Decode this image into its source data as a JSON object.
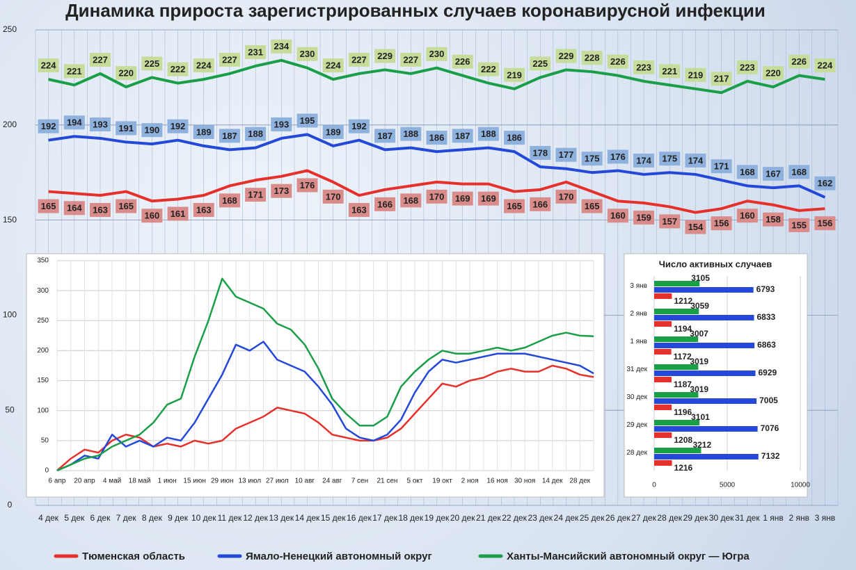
{
  "title": "Динамика прироста зарегистрированных случаев коронавирусной инфекции",
  "chart_data": [
    {
      "type": "line",
      "categories": [
        "4 дек",
        "5 дек",
        "6 дек",
        "7 дек",
        "8 дек",
        "9 дек",
        "10 дек",
        "11 дек",
        "12 дек",
        "13 дек",
        "14 дек",
        "15 дек",
        "16 дек",
        "17 дек",
        "18 дек",
        "19 дек",
        "20 дек",
        "21 дек",
        "22 дек",
        "23 дек",
        "24 дек",
        "25 дек",
        "26 дек",
        "27 дек",
        "28 дек",
        "29 дек",
        "30 дек",
        "31 дек",
        "1 янв",
        "2 янв",
        "3 янв"
      ],
      "ylim": [
        0,
        250
      ],
      "yticks": [
        0,
        50,
        100,
        150,
        200,
        250
      ],
      "grid": true,
      "legend": "bottom",
      "series": [
        {
          "name": "Тюменская область",
          "color": "#e5302b",
          "values": [
            165,
            164,
            163,
            165,
            160,
            161,
            163,
            168,
            171,
            173,
            176,
            170,
            163,
            166,
            168,
            170,
            169,
            169,
            165,
            166,
            170,
            165,
            160,
            159,
            157,
            154,
            156,
            160,
            158,
            155,
            156
          ]
        },
        {
          "name": "Ямало-Ненецкий автономный округ",
          "color": "#2448d8",
          "values": [
            192,
            194,
            193,
            191,
            190,
            192,
            189,
            187,
            188,
            193,
            195,
            189,
            192,
            187,
            188,
            186,
            187,
            188,
            186,
            178,
            177,
            175,
            176,
            174,
            175,
            174,
            171,
            168,
            167,
            168,
            162
          ]
        },
        {
          "name": "Ханты-Мансийский автономный округ — Югра",
          "color": "#1a9e48",
          "values": [
            224,
            221,
            227,
            220,
            225,
            222,
            224,
            227,
            231,
            234,
            230,
            224,
            227,
            229,
            227,
            230,
            226,
            222,
            219,
            225,
            229,
            228,
            226,
            223,
            221,
            219,
            217,
            223,
            220,
            226,
            224
          ]
        }
      ]
    },
    {
      "type": "line",
      "categories": [
        "6 апр",
        null,
        "20 апр",
        null,
        "4 май",
        null,
        "18 май",
        null,
        "1 июн",
        null,
        "15 июн",
        null,
        "29 июн",
        null,
        "13 июл",
        null,
        "27 июл",
        null,
        "10 авг",
        null,
        "24 авг",
        null,
        "7 сен",
        null,
        "21 сен",
        null,
        "5 окт",
        null,
        "19 окт",
        null,
        "2 ноя",
        null,
        "16 ноя",
        null,
        "30 ноя",
        null,
        "14 дек",
        null,
        "28 дек",
        null
      ],
      "ylim": [
        0,
        350
      ],
      "yticks": [
        0,
        50,
        100,
        150,
        200,
        250,
        300,
        350
      ],
      "grid": true,
      "series": [
        {
          "color": "#e5302b",
          "values": [
            0,
            20,
            35,
            30,
            50,
            60,
            55,
            40,
            45,
            40,
            50,
            45,
            50,
            70,
            80,
            90,
            105,
            100,
            95,
            80,
            60,
            55,
            50,
            50,
            55,
            70,
            95,
            120,
            145,
            140,
            150,
            155,
            165,
            170,
            165,
            165,
            175,
            170,
            160,
            156
          ]
        },
        {
          "color": "#2448d8",
          "values": [
            0,
            10,
            25,
            20,
            60,
            40,
            50,
            40,
            55,
            50,
            80,
            120,
            160,
            210,
            200,
            215,
            185,
            175,
            165,
            140,
            110,
            70,
            55,
            50,
            60,
            85,
            130,
            165,
            185,
            180,
            185,
            190,
            195,
            195,
            195,
            190,
            185,
            180,
            175,
            162
          ]
        },
        {
          "color": "#1a9e48",
          "values": [
            0,
            10,
            20,
            25,
            40,
            50,
            60,
            80,
            110,
            120,
            190,
            250,
            320,
            290,
            280,
            270,
            245,
            235,
            210,
            170,
            120,
            95,
            75,
            75,
            90,
            140,
            165,
            185,
            200,
            195,
            195,
            200,
            205,
            200,
            205,
            215,
            225,
            230,
            225,
            224
          ]
        }
      ]
    },
    {
      "type": "hbar",
      "title": "Число активных случаев",
      "categories": [
        "3 янв",
        "2 янв",
        "1 янв",
        "31 дек",
        "30 дек",
        "29 дек",
        "28 дек"
      ],
      "xlim": [
        0,
        10000
      ],
      "xticks": [
        0,
        5000,
        10000
      ],
      "grid": true,
      "series": [
        {
          "color": "#1a9e48",
          "values": [
            3105,
            3059,
            3007,
            3019,
            3019,
            3101,
            3212
          ]
        },
        {
          "color": "#2448d8",
          "values": [
            6793,
            6833,
            6863,
            6929,
            7005,
            7076,
            7132
          ]
        },
        {
          "color": "#e5302b",
          "values": [
            1212,
            1194,
            1172,
            1187,
            1196,
            1208,
            1216
          ]
        }
      ]
    }
  ]
}
